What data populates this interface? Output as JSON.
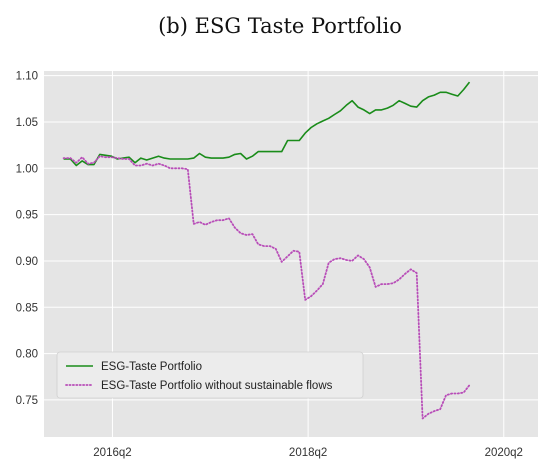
{
  "chart_data": {
    "type": "line",
    "title": "(b) ESG Taste Portfolio",
    "xlabel": "",
    "ylabel": "",
    "ylim": [
      0.71,
      1.105
    ],
    "yticks": [
      0.75,
      0.8,
      0.85,
      0.9,
      0.95,
      1.0,
      1.05,
      1.1
    ],
    "ytick_labels": [
      "0.75",
      "0.80",
      "0.85",
      "0.90",
      "0.95",
      "1.00",
      "1.05",
      "1.10"
    ],
    "xticks": [
      {
        "label": "2016q2",
        "t": 2016.25
      },
      {
        "label": "2018q2",
        "t": 2018.25
      },
      {
        "label": "2020q2",
        "t": 2020.25
      }
    ],
    "xlim": [
      2015.55,
      2020.6
    ],
    "grid": true,
    "background": "#e5e5e5",
    "legend_position": "lower-left",
    "series": [
      {
        "name": "ESG-Taste Portfolio",
        "color": "#1a8c1a",
        "style": "solid",
        "points": [
          [
            2015.75,
            1.01
          ],
          [
            2015.82,
            1.01
          ],
          [
            2015.88,
            1.003
          ],
          [
            2015.94,
            1.008
          ],
          [
            2016.0,
            1.004
          ],
          [
            2016.06,
            1.004
          ],
          [
            2016.12,
            1.015
          ],
          [
            2016.18,
            1.014
          ],
          [
            2016.24,
            1.013
          ],
          [
            2016.3,
            1.01
          ],
          [
            2016.36,
            1.011
          ],
          [
            2016.42,
            1.012
          ],
          [
            2016.48,
            1.006
          ],
          [
            2016.54,
            1.011
          ],
          [
            2016.6,
            1.009
          ],
          [
            2016.66,
            1.011
          ],
          [
            2016.72,
            1.013
          ],
          [
            2016.78,
            1.011
          ],
          [
            2016.84,
            1.01
          ],
          [
            2016.9,
            1.01
          ],
          [
            2016.96,
            1.01
          ],
          [
            2017.02,
            1.01
          ],
          [
            2017.08,
            1.011
          ],
          [
            2017.14,
            1.016
          ],
          [
            2017.2,
            1.012
          ],
          [
            2017.26,
            1.011
          ],
          [
            2017.32,
            1.011
          ],
          [
            2017.38,
            1.011
          ],
          [
            2017.44,
            1.012
          ],
          [
            2017.5,
            1.015
          ],
          [
            2017.56,
            1.016
          ],
          [
            2017.62,
            1.01
          ],
          [
            2017.68,
            1.013
          ],
          [
            2017.74,
            1.018
          ],
          [
            2017.8,
            1.018
          ],
          [
            2017.86,
            1.018
          ],
          [
            2017.92,
            1.018
          ],
          [
            2017.98,
            1.018
          ],
          [
            2018.04,
            1.03
          ],
          [
            2018.1,
            1.03
          ],
          [
            2018.16,
            1.03
          ],
          [
            2018.22,
            1.038
          ],
          [
            2018.28,
            1.044
          ],
          [
            2018.34,
            1.048
          ],
          [
            2018.4,
            1.051
          ],
          [
            2018.46,
            1.054
          ],
          [
            2018.52,
            1.058
          ],
          [
            2018.58,
            1.062
          ],
          [
            2018.64,
            1.068
          ],
          [
            2018.7,
            1.073
          ],
          [
            2018.76,
            1.066
          ],
          [
            2018.82,
            1.063
          ],
          [
            2018.88,
            1.059
          ],
          [
            2018.94,
            1.063
          ],
          [
            2019.0,
            1.063
          ],
          [
            2019.06,
            1.065
          ],
          [
            2019.12,
            1.068
          ],
          [
            2019.18,
            1.073
          ],
          [
            2019.24,
            1.07
          ],
          [
            2019.3,
            1.067
          ],
          [
            2019.36,
            1.066
          ],
          [
            2019.42,
            1.073
          ],
          [
            2019.48,
            1.077
          ],
          [
            2019.54,
            1.079
          ],
          [
            2019.6,
            1.082
          ],
          [
            2019.66,
            1.082
          ],
          [
            2019.72,
            1.08
          ],
          [
            2019.78,
            1.078
          ],
          [
            2019.84,
            1.085
          ],
          [
            2019.9,
            1.093
          ]
        ]
      },
      {
        "name": "ESG-Taste Portfolio without sustainable flows",
        "color": "#b84db8",
        "style": "dotted",
        "points": [
          [
            2015.75,
            1.011
          ],
          [
            2015.82,
            1.011
          ],
          [
            2015.88,
            1.006
          ],
          [
            2015.94,
            1.012
          ],
          [
            2016.0,
            1.005
          ],
          [
            2016.06,
            1.006
          ],
          [
            2016.12,
            1.013
          ],
          [
            2016.18,
            1.012
          ],
          [
            2016.24,
            1.012
          ],
          [
            2016.3,
            1.011
          ],
          [
            2016.36,
            1.01
          ],
          [
            2016.42,
            1.01
          ],
          [
            2016.48,
            1.003
          ],
          [
            2016.54,
            1.003
          ],
          [
            2016.6,
            1.005
          ],
          [
            2016.66,
            1.003
          ],
          [
            2016.72,
            1.005
          ],
          [
            2016.78,
            1.003
          ],
          [
            2016.84,
            1.0
          ],
          [
            2016.9,
            1.0
          ],
          [
            2016.96,
            1.0
          ],
          [
            2017.02,
            0.999
          ],
          [
            2017.08,
            0.94
          ],
          [
            2017.14,
            0.942
          ],
          [
            2017.2,
            0.939
          ],
          [
            2017.26,
            0.942
          ],
          [
            2017.32,
            0.944
          ],
          [
            2017.38,
            0.944
          ],
          [
            2017.44,
            0.946
          ],
          [
            2017.5,
            0.936
          ],
          [
            2017.56,
            0.93
          ],
          [
            2017.62,
            0.928
          ],
          [
            2017.68,
            0.929
          ],
          [
            2017.74,
            0.918
          ],
          [
            2017.8,
            0.916
          ],
          [
            2017.86,
            0.916
          ],
          [
            2017.92,
            0.913
          ],
          [
            2017.98,
            0.899
          ],
          [
            2018.04,
            0.905
          ],
          [
            2018.1,
            0.911
          ],
          [
            2018.16,
            0.91
          ],
          [
            2018.22,
            0.858
          ],
          [
            2018.28,
            0.862
          ],
          [
            2018.34,
            0.868
          ],
          [
            2018.4,
            0.875
          ],
          [
            2018.46,
            0.898
          ],
          [
            2018.52,
            0.902
          ],
          [
            2018.58,
            0.903
          ],
          [
            2018.64,
            0.901
          ],
          [
            2018.7,
            0.9
          ],
          [
            2018.76,
            0.906
          ],
          [
            2018.82,
            0.902
          ],
          [
            2018.88,
            0.893
          ],
          [
            2018.94,
            0.872
          ],
          [
            2019.0,
            0.875
          ],
          [
            2019.06,
            0.875
          ],
          [
            2019.12,
            0.876
          ],
          [
            2019.18,
            0.88
          ],
          [
            2019.24,
            0.886
          ],
          [
            2019.3,
            0.891
          ],
          [
            2019.36,
            0.887
          ],
          [
            2019.42,
            0.73
          ],
          [
            2019.48,
            0.735
          ],
          [
            2019.54,
            0.738
          ],
          [
            2019.6,
            0.74
          ],
          [
            2019.66,
            0.755
          ],
          [
            2019.72,
            0.757
          ],
          [
            2019.78,
            0.757
          ],
          [
            2019.84,
            0.758
          ],
          [
            2019.9,
            0.766
          ]
        ]
      }
    ]
  }
}
